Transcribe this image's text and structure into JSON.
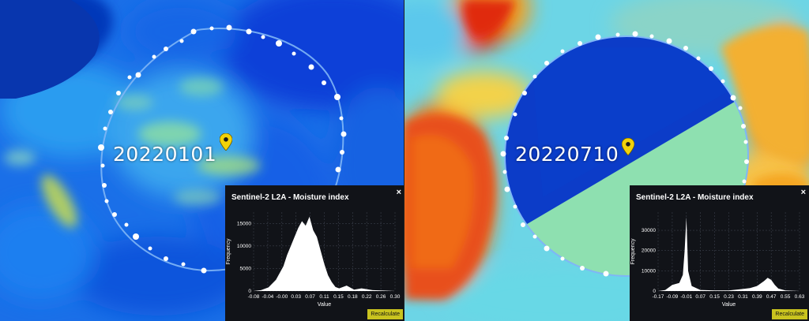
{
  "panels": [
    {
      "date": "20220101",
      "popup": {
        "title": "Sentinel-2 L2A - Moisture index",
        "close": "×",
        "button": "Recalculate",
        "ylabel": "Frequency",
        "xlabel": "Value",
        "yticks": [
          "0",
          "5000",
          "10000",
          "15000"
        ],
        "xticks": [
          "-0.08",
          "-0.04",
          "-0.00",
          "0.03",
          "0.07",
          "0.11",
          "0.15",
          "0.18",
          "0.22",
          "0.26",
          "0.30"
        ]
      }
    },
    {
      "date": "20220710",
      "popup": {
        "title": "Sentinel-2 L2A - Moisture index",
        "close": "×",
        "button": "Recalculate",
        "ylabel": "Frequency",
        "xlabel": "Value",
        "yticks": [
          "0",
          "10000",
          "20000",
          "30000"
        ],
        "xticks": [
          "-0.17",
          "-0.09",
          "-0.01",
          "0.07",
          "0.15",
          "0.23",
          "0.31",
          "0.39",
          "0.47",
          "0.55",
          "0.63"
        ]
      }
    }
  ],
  "colors": {
    "marker": "#f2d20a",
    "popup_bg": "#111318",
    "button_bg": "#c9c31f",
    "histogram": "#ffffff"
  },
  "chart_data": [
    {
      "type": "area",
      "xlabel": "Value",
      "ylabel": "Frequency",
      "ylim": [
        0,
        17500
      ],
      "xlim": [
        -0.08,
        0.3
      ],
      "grid": true,
      "x": [
        -0.08,
        -0.06,
        -0.04,
        -0.02,
        0.0,
        0.01,
        0.02,
        0.03,
        0.04,
        0.05,
        0.06,
        0.07,
        0.08,
        0.09,
        0.1,
        0.11,
        0.12,
        0.13,
        0.14,
        0.15,
        0.17,
        0.19,
        0.21,
        0.24,
        0.27,
        0.3
      ],
      "y": [
        0,
        200,
        800,
        2500,
        5500,
        8000,
        10000,
        12000,
        14000,
        15500,
        14500,
        16500,
        13500,
        12000,
        9000,
        6000,
        3500,
        2000,
        900,
        600,
        1200,
        300,
        600,
        200,
        100,
        0
      ]
    },
    {
      "type": "area",
      "xlabel": "Value",
      "ylabel": "Frequency",
      "ylim": [
        0,
        39000
      ],
      "xlim": [
        -0.17,
        0.63
      ],
      "grid": true,
      "x": [
        -0.17,
        -0.13,
        -0.09,
        -0.05,
        -0.03,
        -0.02,
        -0.01,
        0.0,
        0.02,
        0.07,
        0.15,
        0.23,
        0.31,
        0.35,
        0.39,
        0.43,
        0.45,
        0.47,
        0.49,
        0.51,
        0.55,
        0.63
      ],
      "y": [
        0,
        500,
        3000,
        4000,
        8000,
        20000,
        36500,
        10000,
        2500,
        500,
        300,
        300,
        1000,
        1500,
        2500,
        5000,
        6500,
        5500,
        3000,
        1200,
        300,
        0
      ]
    }
  ]
}
